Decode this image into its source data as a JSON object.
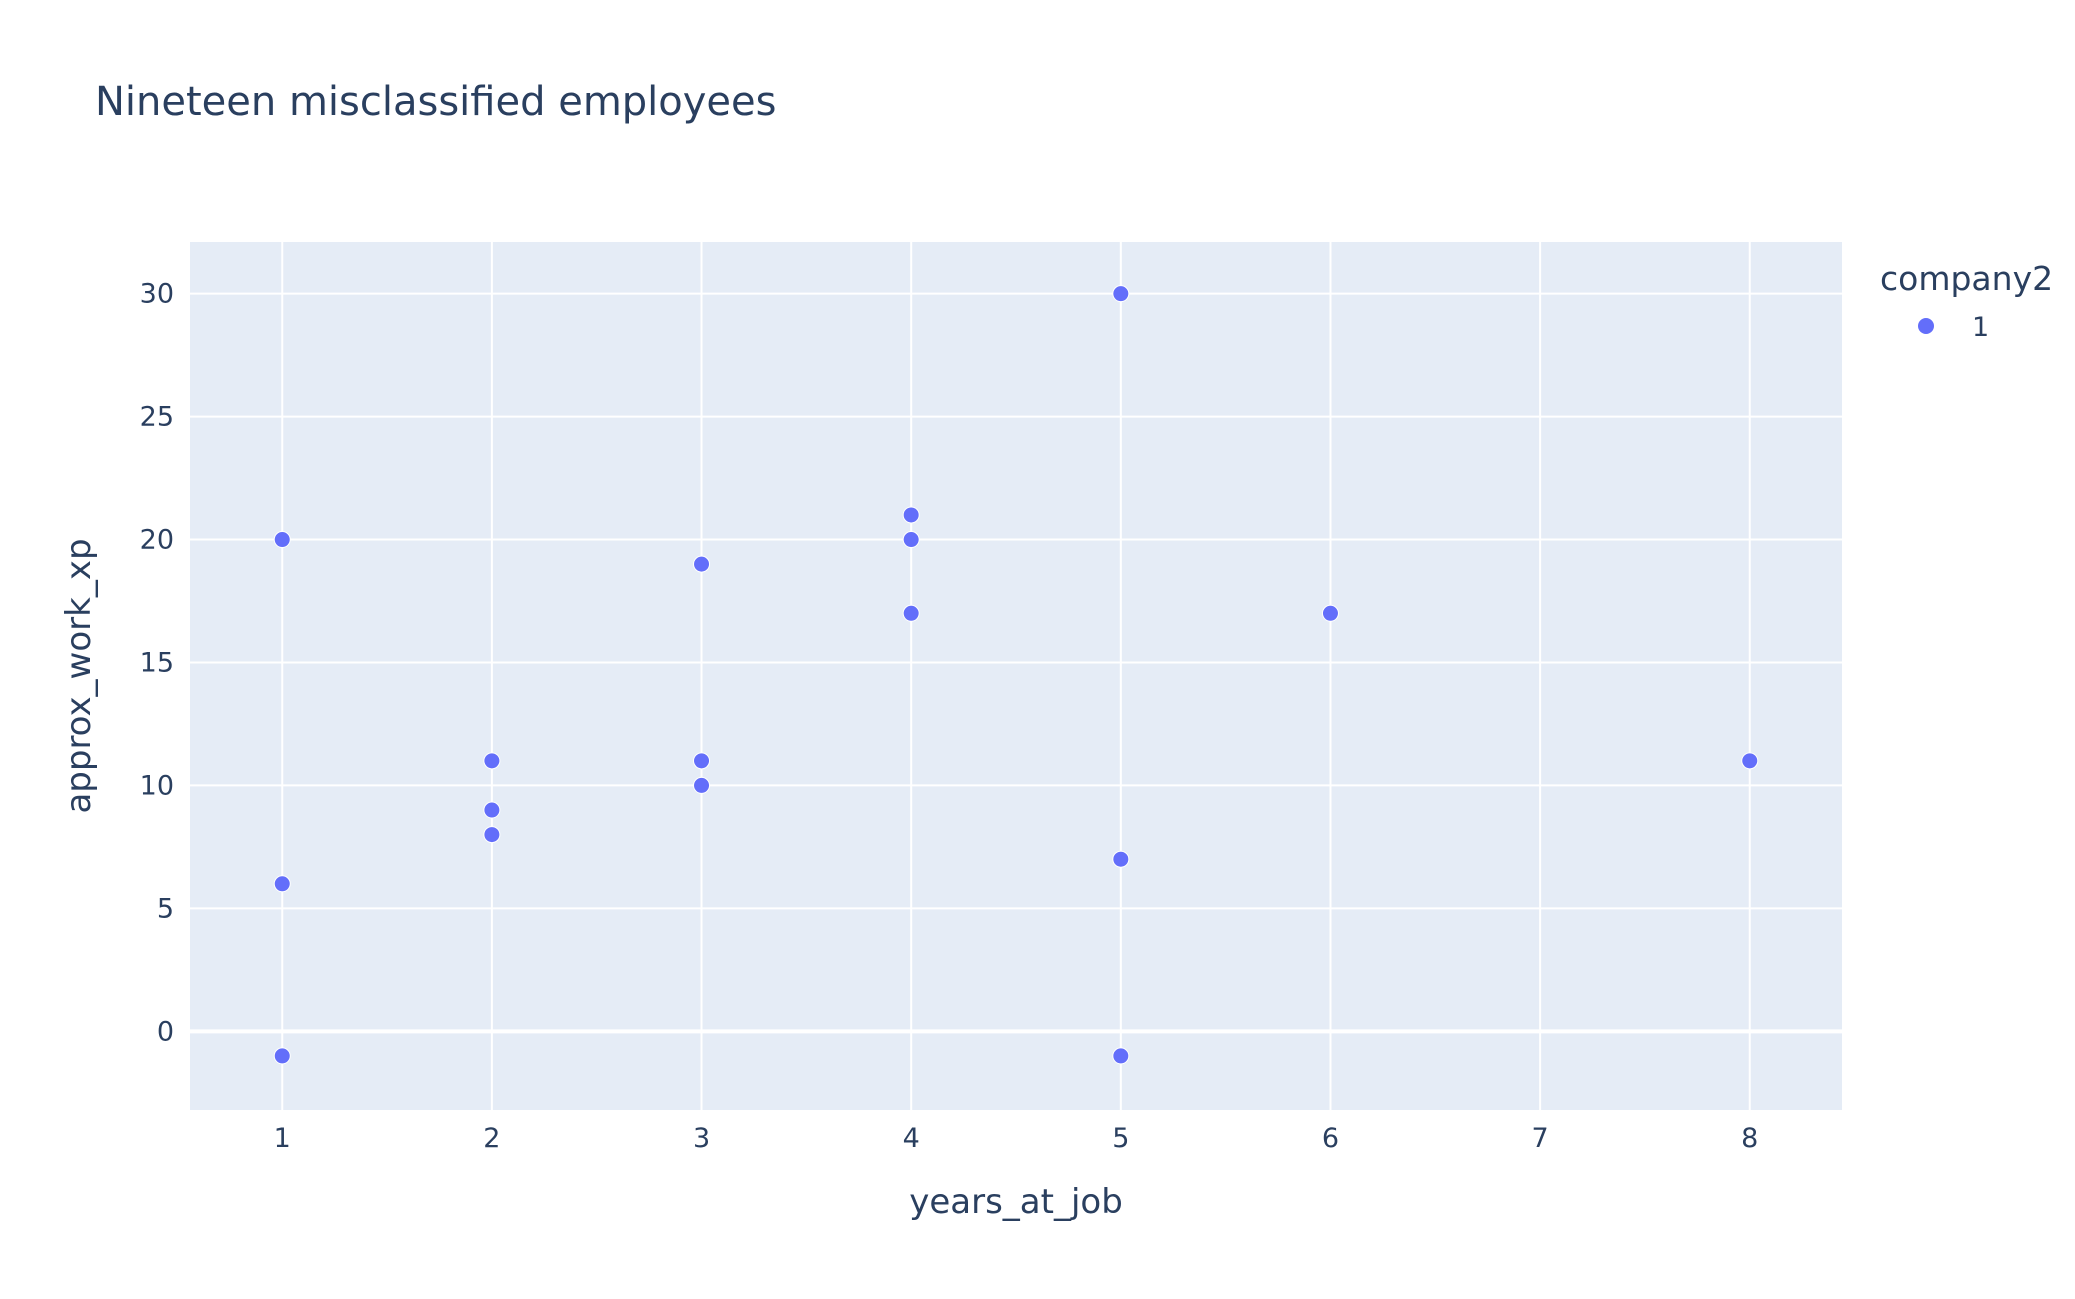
{
  "chart_data": {
    "type": "scatter",
    "title": "Nineteen misclassified employees",
    "xlabel": "years_at_job",
    "ylabel": "approx_work_xp",
    "xlim": [
      0.56,
      8.44
    ],
    "ylim": [
      -3.2,
      32.1
    ],
    "xticks": [
      1,
      2,
      3,
      4,
      5,
      6,
      7,
      8
    ],
    "yticks": [
      0,
      5,
      10,
      15,
      20,
      25,
      30
    ],
    "grid": true,
    "legend": {
      "title": "company2",
      "placement": "top-right",
      "entries": [
        "1"
      ]
    },
    "series": [
      {
        "name": "1",
        "color": "#636efa",
        "points": [
          {
            "x": 1,
            "y": 20
          },
          {
            "x": 1,
            "y": 6
          },
          {
            "x": 1,
            "y": -1
          },
          {
            "x": 2,
            "y": 11
          },
          {
            "x": 2,
            "y": 9
          },
          {
            "x": 2,
            "y": 8
          },
          {
            "x": 3,
            "y": 19
          },
          {
            "x": 3,
            "y": 11
          },
          {
            "x": 3,
            "y": 10
          },
          {
            "x": 4,
            "y": 21
          },
          {
            "x": 4,
            "y": 20
          },
          {
            "x": 4,
            "y": 17
          },
          {
            "x": 5,
            "y": 30
          },
          {
            "x": 5,
            "y": 7
          },
          {
            "x": 5,
            "y": -1
          },
          {
            "x": 6,
            "y": 17
          },
          {
            "x": 8,
            "y": 11
          }
        ]
      }
    ],
    "colors": {
      "plot_background": "#e5ecf6",
      "grid": "#ffffff",
      "text": "#2a3f5f"
    }
  }
}
